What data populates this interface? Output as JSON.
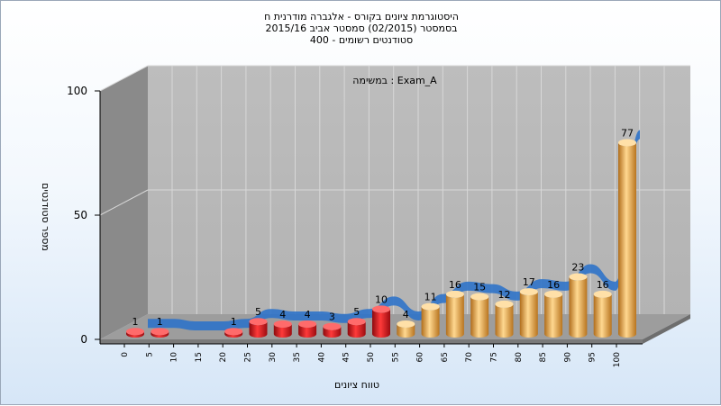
{
  "title": {
    "line1": "היסטוגרמת ציונים בקורס - אלגברה מודרנית ח",
    "line2": "בסמסטר  (02/2015)  סמסטר אביב 2015/16",
    "line3": "סטודנטים רשומים - 400"
  },
  "chart_data": {
    "type": "bar",
    "annotation": "במשימה : Exam_A",
    "xlabel": "טווח ציונים",
    "ylabel": "מספר סטודנטים",
    "ylim": [
      0,
      100
    ],
    "y_ticks": [
      "0",
      "50",
      "100"
    ],
    "grid": true,
    "categories": [
      "0",
      "5",
      "10",
      "15",
      "20",
      "25",
      "30",
      "35",
      "40",
      "45",
      "50",
      "55",
      "60",
      "65",
      "70",
      "75",
      "80",
      "85",
      "90",
      "95",
      "100"
    ],
    "values": [
      1,
      1,
      0,
      0,
      1,
      5,
      4,
      4,
      3,
      5,
      10,
      4,
      11,
      16,
      15,
      12,
      17,
      16,
      23,
      16,
      77
    ],
    "fail_color": "#d9151b",
    "pass_color": "#e8a84a",
    "ribbon_color": "#2f73c9",
    "pass_threshold": "55"
  }
}
